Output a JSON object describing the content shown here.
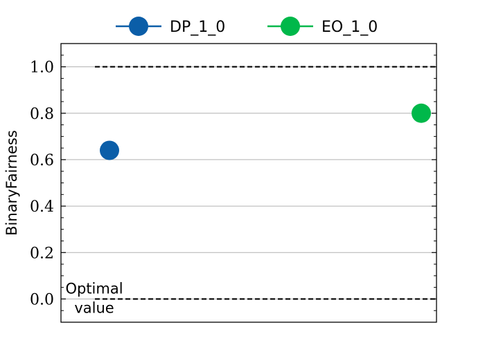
{
  "chart_data": {
    "type": "scatter",
    "title": "",
    "xlabel": "",
    "ylabel": "BinaryFairness",
    "ylim": [
      -0.1,
      1.1
    ],
    "yticks": [
      "0.0",
      "0.2",
      "0.4",
      "0.6",
      "0.8",
      "1.0"
    ],
    "grid": "horizontal",
    "legend_position": "top-center",
    "series": [
      {
        "name": "DP_1_0",
        "x": 0,
        "y": 0.64,
        "color": "#0b5ea8"
      },
      {
        "name": "EO_1_0",
        "x": 1,
        "y": 0.8,
        "color": "#00b84a"
      }
    ],
    "reference_lines": [
      {
        "y": 1.0,
        "style": "dashed",
        "color": "#000000"
      },
      {
        "y": 0.0,
        "style": "dashed",
        "color": "#000000"
      }
    ],
    "annotation": {
      "text_line1": "Optimal",
      "text_line2": "value"
    }
  }
}
